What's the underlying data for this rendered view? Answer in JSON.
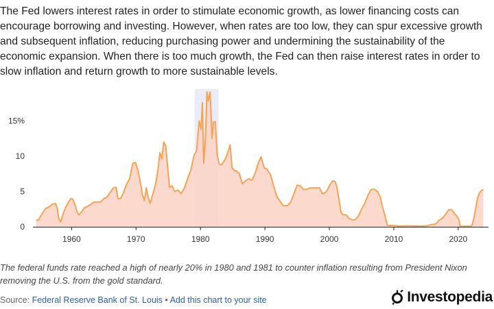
{
  "intro_text": "The Fed lowers interest rates in order to stimulate economic growth, as lower financing costs can encourage borrowing and investing. However, when rates are too low, they can spur excessive growth and subsequent inflation, reducing purchasing power and undermining the sustainability of the economic expansion. When there is too much growth, the Fed can then raise interest rates in order to slow inflation and return growth to more sustainable levels.",
  "caption": "The federal funds rate reached a high of nearly 20% in 1980 and 1981 to counter inflation resulting from President Nixon removing the U.S. from the gold standard.",
  "source": {
    "prefix": "Source: ",
    "link_label": "Federal Reserve Bank of St. Louis",
    "separator": " • ",
    "embed_label": "Add this chart to your site"
  },
  "brand": {
    "name": "Investopedia",
    "icon": "investopedia-logo-icon"
  },
  "colors": {
    "line": "#f5a355",
    "fill": "#fbd2c4",
    "highlight": "#eaedf7",
    "axis": "#222222"
  },
  "chart_data": {
    "type": "area",
    "title": "",
    "xlabel": "",
    "ylabel": "",
    "xlim": [
      1954,
      2024.7
    ],
    "ylim": [
      0,
      19.5
    ],
    "x_ticks": [
      1960,
      1970,
      1980,
      1990,
      2000,
      2010,
      2020
    ],
    "x_tick_labels": [
      "1960",
      "1970",
      "1980",
      "1990",
      "2000",
      "2010",
      "2020"
    ],
    "y_ticks": [
      0,
      5,
      10,
      15
    ],
    "y_tick_labels": [
      "0",
      "5",
      "10",
      "15%"
    ],
    "grid": false,
    "highlight_range": [
      1979.1,
      1982.8
    ],
    "series": [
      {
        "name": "Federal funds rate",
        "x": [
          1954.5,
          1954.8,
          1955.2,
          1955.6,
          1956.0,
          1956.5,
          1957.0,
          1957.5,
          1957.8,
          1958.0,
          1958.3,
          1958.6,
          1959.0,
          1959.5,
          1959.9,
          1960.2,
          1960.6,
          1960.9,
          1961.2,
          1961.6,
          1962.0,
          1962.5,
          1963.0,
          1963.5,
          1964.0,
          1964.5,
          1965.0,
          1965.5,
          1966.0,
          1966.5,
          1966.9,
          1967.2,
          1967.6,
          1968.0,
          1968.5,
          1969.0,
          1969.5,
          1969.9,
          1970.3,
          1970.7,
          1971.0,
          1971.3,
          1971.6,
          1971.9,
          1972.2,
          1972.6,
          1973.0,
          1973.4,
          1973.7,
          1974.0,
          1974.3,
          1974.6,
          1974.9,
          1975.2,
          1975.6,
          1976.0,
          1976.5,
          1977.0,
          1977.5,
          1978.0,
          1978.5,
          1979.0,
          1979.4,
          1979.8,
          1980.1,
          1980.3,
          1980.5,
          1980.8,
          1981.0,
          1981.2,
          1981.5,
          1981.8,
          1982.0,
          1982.3,
          1982.6,
          1982.9,
          1983.3,
          1983.8,
          1984.2,
          1984.6,
          1984.9,
          1985.2,
          1985.6,
          1986.0,
          1986.5,
          1987.0,
          1987.5,
          1988.0,
          1988.5,
          1989.0,
          1989.4,
          1989.9,
          1990.3,
          1990.9,
          1991.3,
          1991.8,
          1992.3,
          1992.8,
          1993.5,
          1994.0,
          1994.5,
          1995.0,
          1995.5,
          1996.0,
          1996.5,
          1997.0,
          1997.5,
          1998.0,
          1998.5,
          1998.9,
          1999.3,
          1999.7,
          2000.0,
          2000.5,
          2000.9,
          2001.2,
          2001.5,
          2001.8,
          2002.1,
          2002.6,
          2003.0,
          2003.5,
          2004.0,
          2004.5,
          2005.0,
          2005.5,
          2006.0,
          2006.5,
          2007.0,
          2007.5,
          2007.9,
          2008.2,
          2008.5,
          2008.8,
          2009.0,
          2010.0,
          2011.0,
          2012.0,
          2013.0,
          2014.0,
          2015.0,
          2015.9,
          2016.5,
          2017.0,
          2017.5,
          2018.0,
          2018.5,
          2019.0,
          2019.5,
          2019.8,
          2020.1,
          2020.3,
          2021.0,
          2022.0,
          2022.2,
          2022.5,
          2022.8,
          2023.0,
          2023.3,
          2023.6,
          2023.9
        ],
        "values": [
          1.0,
          0.9,
          1.5,
          2.1,
          2.6,
          2.8,
          3.2,
          3.3,
          2.5,
          1.2,
          0.7,
          1.6,
          2.6,
          3.5,
          4.0,
          3.9,
          2.9,
          2.0,
          1.7,
          2.2,
          2.7,
          2.9,
          3.2,
          3.5,
          3.5,
          3.5,
          4.0,
          4.2,
          4.9,
          5.5,
          5.6,
          4.0,
          4.0,
          4.7,
          6.0,
          6.8,
          9.0,
          9.1,
          8.0,
          6.2,
          4.5,
          3.7,
          5.5,
          4.1,
          3.3,
          4.6,
          5.9,
          8.0,
          10.5,
          9.6,
          12.0,
          11.5,
          8.5,
          5.6,
          5.8,
          5.0,
          5.2,
          4.7,
          5.5,
          6.8,
          8.0,
          10.1,
          10.8,
          15.0,
          13.8,
          17.6,
          9.0,
          12.8,
          19.1,
          17.8,
          19.1,
          12.5,
          14.8,
          14.9,
          10.1,
          8.9,
          8.8,
          9.5,
          10.4,
          11.6,
          8.4,
          8.0,
          7.9,
          7.6,
          6.1,
          6.5,
          6.8,
          6.6,
          7.6,
          9.1,
          9.9,
          8.3,
          8.2,
          7.3,
          6.0,
          4.4,
          3.7,
          3.0,
          3.0,
          3.5,
          4.7,
          5.9,
          5.8,
          5.3,
          5.3,
          5.5,
          5.5,
          5.5,
          5.5,
          4.7,
          4.8,
          5.2,
          5.8,
          6.5,
          6.4,
          5.5,
          3.9,
          2.1,
          1.7,
          1.7,
          1.2,
          1.0,
          1.0,
          1.5,
          2.5,
          3.3,
          4.5,
          5.3,
          5.3,
          5.0,
          4.2,
          3.0,
          2.0,
          1.0,
          0.2,
          0.18,
          0.1,
          0.14,
          0.11,
          0.09,
          0.13,
          0.3,
          0.4,
          0.9,
          1.2,
          1.7,
          2.4,
          2.4,
          1.8,
          1.5,
          1.0,
          0.05,
          0.08,
          0.08,
          0.33,
          1.5,
          3.1,
          4.1,
          4.8,
          5.1,
          5.3
        ]
      }
    ]
  }
}
